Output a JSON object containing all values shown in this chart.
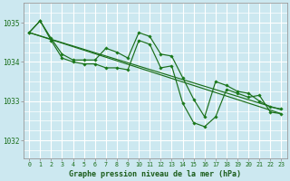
{
  "bg_color": "#cce8f0",
  "grid_color": "#ffffff",
  "line_color": "#1a6e1a",
  "marker_color": "#1a7a1a",
  "xlabel": "Graphe pression niveau de la mer (hPa)",
  "xlabel_color": "#1a5c1a",
  "ylabel_ticks": [
    1032,
    1033,
    1034,
    1035
  ],
  "xlim": [
    -0.5,
    23.5
  ],
  "ylim": [
    1031.55,
    1035.5
  ],
  "tick_label_color": "#1a6e1a",
  "series_jagged1": {
    "x": [
      0,
      1,
      2,
      3,
      4,
      5,
      6,
      7,
      8,
      9,
      10,
      11,
      12,
      13,
      14,
      15,
      16,
      17,
      18,
      19,
      20,
      21,
      22,
      23
    ],
    "y": [
      1034.75,
      1035.05,
      1034.6,
      1034.2,
      1034.05,
      1034.05,
      1034.05,
      1034.35,
      1034.25,
      1034.1,
      1034.75,
      1034.65,
      1034.2,
      1034.15,
      1033.6,
      1033.05,
      1032.6,
      1033.5,
      1033.4,
      1033.25,
      1033.2,
      1033.0,
      1032.85,
      1032.8
    ]
  },
  "series_jagged2": {
    "x": [
      0,
      1,
      2,
      3,
      4,
      5,
      6,
      7,
      8,
      9,
      10,
      11,
      12,
      13,
      14,
      15,
      16,
      17,
      18,
      19,
      20,
      21,
      22,
      23
    ],
    "y": [
      1034.75,
      1035.05,
      1034.55,
      1034.1,
      1034.0,
      1033.95,
      1033.95,
      1033.85,
      1033.85,
      1033.8,
      1034.55,
      1034.45,
      1033.85,
      1033.9,
      1032.95,
      1032.45,
      1032.35,
      1032.6,
      1033.3,
      1033.2,
      1033.1,
      1033.15,
      1032.72,
      1032.68
    ]
  },
  "series_line1": {
    "x": [
      0,
      23
    ],
    "y": [
      1034.75,
      1032.78
    ]
  },
  "series_line2": {
    "x": [
      0,
      23
    ],
    "y": [
      1034.75,
      1032.68
    ]
  }
}
